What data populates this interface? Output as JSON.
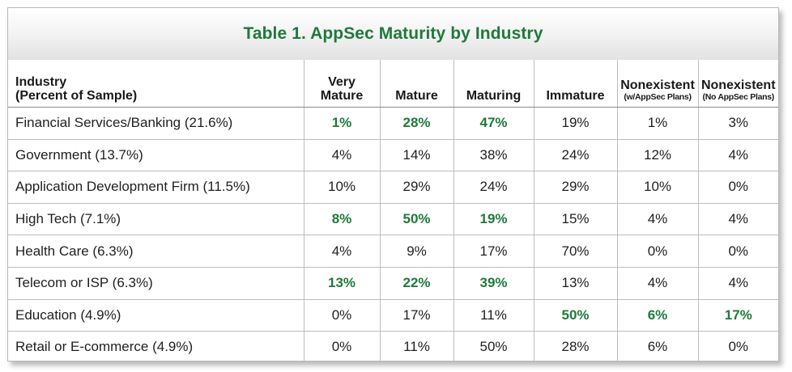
{
  "title": "Table 1. AppSec Maturity by Industry",
  "colors": {
    "title": "#1f7a3a",
    "highlight": "#1f7a3a",
    "text": "#1f1f1f"
  },
  "header": {
    "industry": [
      "Industry",
      "(Percent of Sample)"
    ],
    "very_mature": [
      "Very",
      "Mature"
    ],
    "mature": "Mature",
    "maturing": "Maturing",
    "immature": "Immature",
    "nonexistent_plans": [
      "Nonexistent",
      "(w/AppSec Plans)"
    ],
    "nonexistent_no_plans": [
      "Nonexistent",
      "(No AppSec Plans)"
    ]
  },
  "rows": [
    {
      "industry": "Financial Services/Banking (21.6%)",
      "values": [
        "1%",
        "28%",
        "47%",
        "19%",
        "1%",
        "3%"
      ],
      "highlight": [
        true,
        true,
        true,
        false,
        false,
        false
      ]
    },
    {
      "industry": "Government (13.7%)",
      "values": [
        "4%",
        "14%",
        "38%",
        "24%",
        "12%",
        "4%"
      ],
      "highlight": [
        false,
        false,
        false,
        false,
        false,
        false
      ]
    },
    {
      "industry": "Application Development Firm (11.5%)",
      "values": [
        "10%",
        "29%",
        "24%",
        "29%",
        "10%",
        "0%"
      ],
      "highlight": [
        false,
        false,
        false,
        false,
        false,
        false
      ]
    },
    {
      "industry": "High Tech (7.1%)",
      "values": [
        "8%",
        "50%",
        "19%",
        "15%",
        "4%",
        "4%"
      ],
      "highlight": [
        true,
        true,
        true,
        false,
        false,
        false
      ]
    },
    {
      "industry": "Health Care (6.3%)",
      "values": [
        "4%",
        "9%",
        "17%",
        "70%",
        "0%",
        "0%"
      ],
      "highlight": [
        false,
        false,
        false,
        false,
        false,
        false
      ]
    },
    {
      "industry": "Telecom or ISP (6.3%)",
      "values": [
        "13%",
        "22%",
        "39%",
        "13%",
        "4%",
        "4%"
      ],
      "highlight": [
        true,
        true,
        true,
        false,
        false,
        false
      ]
    },
    {
      "industry": "Education (4.9%)",
      "values": [
        "0%",
        "17%",
        "11%",
        "50%",
        "6%",
        "17%"
      ],
      "highlight": [
        false,
        false,
        false,
        true,
        true,
        true
      ]
    },
    {
      "industry": "Retail or E-commerce (4.9%)",
      "values": [
        "0%",
        "11%",
        "50%",
        "28%",
        "6%",
        "0%"
      ],
      "highlight": [
        false,
        false,
        false,
        false,
        false,
        false
      ]
    }
  ]
}
